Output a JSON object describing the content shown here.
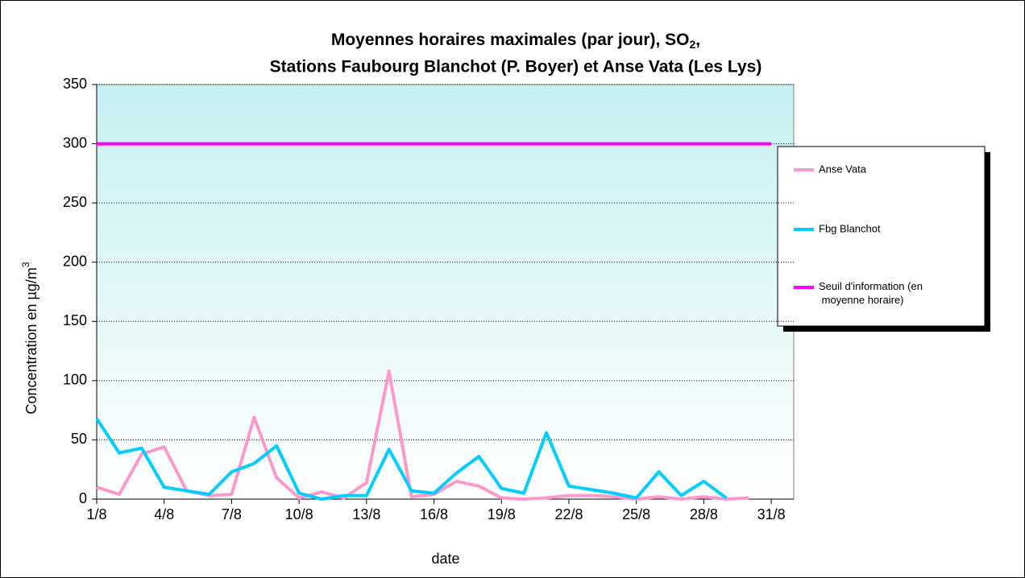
{
  "chart_data": {
    "type": "line",
    "title_parts": [
      "Moyennes horaires maximales (par jour), SO",
      "2",
      ","
    ],
    "title_line2": "Stations Faubourg Blanchot (P. Boyer) et Anse Vata (Les Lys)",
    "y_label_parts": [
      "Concentration en µg/m",
      "3"
    ],
    "x_label": "date",
    "categories": [
      "1/8",
      null,
      null,
      "4/8",
      null,
      null,
      "7/8",
      null,
      null,
      "10/8",
      null,
      null,
      "13/8",
      null,
      null,
      "16/8",
      null,
      null,
      "19/8",
      null,
      null,
      "22/8",
      null,
      null,
      "25/8",
      null,
      null,
      "28/8",
      null,
      null,
      "31/8"
    ],
    "series": [
      {
        "name": "Anse Vata",
        "color": "#ff99cc",
        "values": [
          10,
          4,
          38,
          44,
          7,
          3,
          4,
          69,
          18,
          1,
          6,
          1,
          14,
          108,
          2,
          4,
          15,
          11,
          1,
          0,
          1,
          3,
          3,
          2,
          0,
          2,
          0,
          2,
          0,
          1,
          null
        ]
      },
      {
        "name": "Fbg Blanchot",
        "color": "#00ccff",
        "values": [
          68,
          39,
          43,
          10,
          7,
          4,
          23,
          30,
          45,
          5,
          0,
          3,
          3,
          42,
          7,
          5,
          22,
          36,
          9,
          5,
          56,
          11,
          8,
          5,
          1,
          23,
          3,
          15,
          1,
          null,
          null
        ]
      },
      {
        "name": "Seuil d'information (en moyenne horaire)",
        "color": "#ff00ff",
        "values": [
          300,
          300,
          300,
          300,
          300,
          300,
          300,
          300,
          300,
          300,
          300,
          300,
          300,
          300,
          300,
          300,
          300,
          300,
          300,
          300,
          300,
          300,
          300,
          300,
          300,
          300,
          300,
          300,
          300,
          300,
          300
        ]
      }
    ],
    "ylim": [
      0,
      350
    ],
    "yticks": [
      0,
      50,
      100,
      150,
      200,
      250,
      300,
      350
    ],
    "grid": true,
    "legend": "right"
  }
}
